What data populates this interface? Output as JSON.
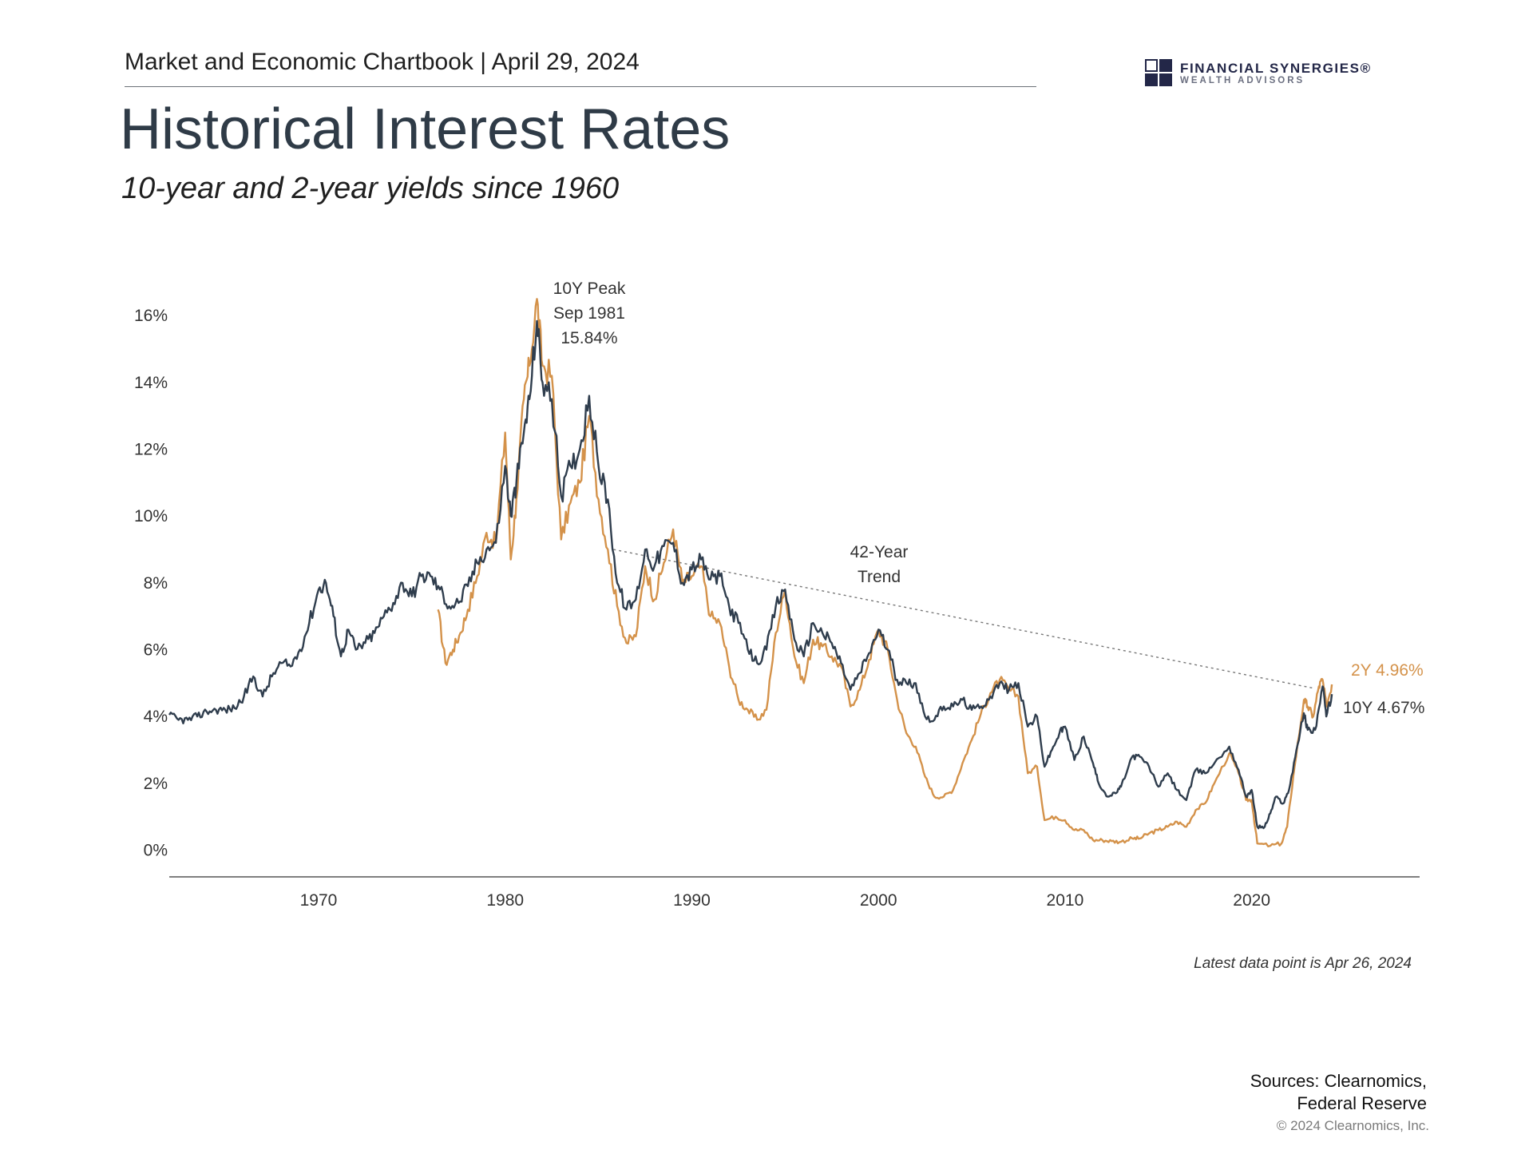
{
  "header": {
    "chartbook": "Market and Economic Chartbook | April 29, 2024"
  },
  "logo": {
    "name": "FINANCIAL SYNERGIES®",
    "sub": "WEALTH ADVISORS"
  },
  "title": "Historical Interest Rates",
  "subtitle": "10-year and 2-year yields since 1960",
  "footer": {
    "latest": "Latest data point is Apr 26, 2024",
    "sources_line1": "Sources: Clearnomics,",
    "sources_line2": "Federal Reserve",
    "copyright": "© 2024 Clearnomics, Inc."
  },
  "colors": {
    "ten_year": "#2f3d4d",
    "two_year": "#d4924a",
    "trend": "#777777",
    "axis": "#555555"
  },
  "chart_data": {
    "type": "line",
    "xlim": [
      1962,
      2029
    ],
    "ylim": [
      -0.8,
      17.2
    ],
    "x_ticks": [
      1970,
      1980,
      1990,
      2000,
      2010,
      2020
    ],
    "y_ticks": [
      0,
      2,
      4,
      6,
      8,
      10,
      12,
      14,
      16
    ],
    "y_tick_labels": [
      "0%",
      "2%",
      "4%",
      "6%",
      "8%",
      "10%",
      "12%",
      "14%",
      "16%"
    ],
    "grid": false,
    "series": [
      {
        "name": "10Y",
        "end_label": "10Y 4.67%",
        "points": [
          [
            1962.0,
            4.05
          ],
          [
            1962.5,
            3.9
          ],
          [
            1963.0,
            3.9
          ],
          [
            1963.5,
            4.0
          ],
          [
            1964.0,
            4.15
          ],
          [
            1964.5,
            4.2
          ],
          [
            1965.0,
            4.2
          ],
          [
            1965.5,
            4.25
          ],
          [
            1966.0,
            4.6
          ],
          [
            1966.5,
            5.2
          ],
          [
            1967.0,
            4.6
          ],
          [
            1967.5,
            5.2
          ],
          [
            1968.0,
            5.6
          ],
          [
            1968.5,
            5.5
          ],
          [
            1969.0,
            6.0
          ],
          [
            1969.5,
            6.8
          ],
          [
            1970.0,
            7.8
          ],
          [
            1970.4,
            8.0
          ],
          [
            1970.8,
            7.0
          ],
          [
            1971.2,
            5.8
          ],
          [
            1971.6,
            6.6
          ],
          [
            1972.0,
            6.0
          ],
          [
            1972.5,
            6.2
          ],
          [
            1973.0,
            6.5
          ],
          [
            1973.5,
            7.0
          ],
          [
            1974.0,
            7.4
          ],
          [
            1974.5,
            8.0
          ],
          [
            1975.0,
            7.6
          ],
          [
            1975.5,
            8.2
          ],
          [
            1976.0,
            8.2
          ],
          [
            1976.5,
            7.8
          ],
          [
            1977.0,
            7.3
          ],
          [
            1977.5,
            7.4
          ],
          [
            1978.0,
            7.9
          ],
          [
            1978.5,
            8.6
          ],
          [
            1979.0,
            9.0
          ],
          [
            1979.5,
            9.2
          ],
          [
            1980.0,
            11.5
          ],
          [
            1980.3,
            10.0
          ],
          [
            1980.6,
            11.0
          ],
          [
            1981.0,
            12.5
          ],
          [
            1981.3,
            13.5
          ],
          [
            1981.7,
            15.84
          ],
          [
            1982.0,
            14.0
          ],
          [
            1982.5,
            13.5
          ],
          [
            1983.0,
            10.6
          ],
          [
            1983.5,
            11.5
          ],
          [
            1984.0,
            12.0
          ],
          [
            1984.5,
            13.6
          ],
          [
            1985.0,
            11.5
          ],
          [
            1985.5,
            10.5
          ],
          [
            1986.0,
            8.0
          ],
          [
            1986.5,
            7.2
          ],
          [
            1987.0,
            7.5
          ],
          [
            1987.5,
            9.0
          ],
          [
            1988.0,
            8.5
          ],
          [
            1988.5,
            9.1
          ],
          [
            1989.0,
            9.2
          ],
          [
            1989.5,
            8.0
          ],
          [
            1990.0,
            8.4
          ],
          [
            1990.5,
            8.7
          ],
          [
            1991.0,
            8.1
          ],
          [
            1991.5,
            8.2
          ],
          [
            1992.0,
            7.3
          ],
          [
            1992.5,
            6.8
          ],
          [
            1993.0,
            6.0
          ],
          [
            1993.5,
            5.6
          ],
          [
            1994.0,
            6.0
          ],
          [
            1994.5,
            7.3
          ],
          [
            1995.0,
            7.8
          ],
          [
            1995.5,
            6.3
          ],
          [
            1996.0,
            5.8
          ],
          [
            1996.5,
            6.8
          ],
          [
            1997.0,
            6.5
          ],
          [
            1997.5,
            6.2
          ],
          [
            1998.0,
            5.6
          ],
          [
            1998.5,
            4.8
          ],
          [
            1999.0,
            5.3
          ],
          [
            1999.5,
            5.9
          ],
          [
            2000.0,
            6.6
          ],
          [
            2000.5,
            6.0
          ],
          [
            2001.0,
            5.1
          ],
          [
            2001.5,
            5.0
          ],
          [
            2002.0,
            5.0
          ],
          [
            2002.5,
            4.0
          ],
          [
            2003.0,
            3.9
          ],
          [
            2003.5,
            4.3
          ],
          [
            2004.0,
            4.3
          ],
          [
            2004.5,
            4.5
          ],
          [
            2005.0,
            4.2
          ],
          [
            2005.5,
            4.3
          ],
          [
            2006.0,
            4.6
          ],
          [
            2006.5,
            5.0
          ],
          [
            2007.0,
            4.8
          ],
          [
            2007.5,
            5.0
          ],
          [
            2008.0,
            3.7
          ],
          [
            2008.5,
            4.0
          ],
          [
            2008.9,
            2.5
          ],
          [
            2009.3,
            3.0
          ],
          [
            2009.7,
            3.5
          ],
          [
            2010.0,
            3.7
          ],
          [
            2010.5,
            2.7
          ],
          [
            2011.0,
            3.4
          ],
          [
            2011.5,
            2.6
          ],
          [
            2011.8,
            2.0
          ],
          [
            2012.3,
            1.6
          ],
          [
            2012.7,
            1.7
          ],
          [
            2013.0,
            1.9
          ],
          [
            2013.6,
            2.8
          ],
          [
            2014.0,
            2.8
          ],
          [
            2014.5,
            2.5
          ],
          [
            2015.0,
            1.9
          ],
          [
            2015.5,
            2.3
          ],
          [
            2016.0,
            1.8
          ],
          [
            2016.5,
            1.5
          ],
          [
            2017.0,
            2.4
          ],
          [
            2017.5,
            2.3
          ],
          [
            2018.0,
            2.6
          ],
          [
            2018.8,
            3.1
          ],
          [
            2019.3,
            2.4
          ],
          [
            2019.7,
            1.6
          ],
          [
            2020.0,
            1.8
          ],
          [
            2020.3,
            0.7
          ],
          [
            2020.7,
            0.7
          ],
          [
            2021.0,
            1.1
          ],
          [
            2021.3,
            1.6
          ],
          [
            2021.7,
            1.4
          ],
          [
            2022.0,
            1.8
          ],
          [
            2022.4,
            3.0
          ],
          [
            2022.8,
            4.1
          ],
          [
            2023.0,
            3.6
          ],
          [
            2023.4,
            3.6
          ],
          [
            2023.8,
            4.9
          ],
          [
            2024.0,
            4.0
          ],
          [
            2024.3,
            4.67
          ]
        ]
      },
      {
        "name": "2Y",
        "end_label": "2Y 4.96%",
        "points": [
          [
            1976.4,
            7.2
          ],
          [
            1976.8,
            5.6
          ],
          [
            1977.2,
            6.0
          ],
          [
            1977.6,
            6.5
          ],
          [
            1978.0,
            7.2
          ],
          [
            1978.5,
            8.2
          ],
          [
            1979.0,
            9.5
          ],
          [
            1979.5,
            9.2
          ],
          [
            1980.0,
            12.5
          ],
          [
            1980.3,
            8.7
          ],
          [
            1980.6,
            10.5
          ],
          [
            1981.0,
            13.5
          ],
          [
            1981.3,
            14.5
          ],
          [
            1981.7,
            16.5
          ],
          [
            1982.0,
            14.5
          ],
          [
            1982.5,
            14.2
          ],
          [
            1983.0,
            9.3
          ],
          [
            1983.5,
            10.4
          ],
          [
            1984.0,
            11.0
          ],
          [
            1984.5,
            13.0
          ],
          [
            1985.0,
            10.5
          ],
          [
            1985.5,
            9.0
          ],
          [
            1986.0,
            7.3
          ],
          [
            1986.5,
            6.2
          ],
          [
            1987.0,
            6.4
          ],
          [
            1987.5,
            8.5
          ],
          [
            1988.0,
            7.5
          ],
          [
            1988.5,
            8.6
          ],
          [
            1989.0,
            9.6
          ],
          [
            1989.5,
            8.0
          ],
          [
            1990.0,
            8.2
          ],
          [
            1990.5,
            8.5
          ],
          [
            1991.0,
            7.0
          ],
          [
            1991.5,
            6.8
          ],
          [
            1992.0,
            5.5
          ],
          [
            1992.5,
            4.5
          ],
          [
            1993.0,
            4.2
          ],
          [
            1993.5,
            3.9
          ],
          [
            1994.0,
            4.2
          ],
          [
            1994.5,
            6.5
          ],
          [
            1995.0,
            7.8
          ],
          [
            1995.5,
            5.8
          ],
          [
            1996.0,
            5.0
          ],
          [
            1996.5,
            6.3
          ],
          [
            1997.0,
            6.1
          ],
          [
            1997.5,
            5.8
          ],
          [
            1998.0,
            5.5
          ],
          [
            1998.5,
            4.3
          ],
          [
            1999.0,
            4.8
          ],
          [
            1999.5,
            5.7
          ],
          [
            2000.0,
            6.6
          ],
          [
            2000.5,
            6.0
          ],
          [
            2001.0,
            4.5
          ],
          [
            2001.5,
            3.5
          ],
          [
            2002.0,
            3.1
          ],
          [
            2002.5,
            2.2
          ],
          [
            2003.0,
            1.6
          ],
          [
            2003.5,
            1.6
          ],
          [
            2004.0,
            1.8
          ],
          [
            2004.5,
            2.6
          ],
          [
            2005.0,
            3.3
          ],
          [
            2005.5,
            4.1
          ],
          [
            2006.0,
            4.7
          ],
          [
            2006.5,
            5.1
          ],
          [
            2007.0,
            4.8
          ],
          [
            2007.5,
            4.6
          ],
          [
            2008.0,
            2.3
          ],
          [
            2008.5,
            2.5
          ],
          [
            2008.9,
            0.9
          ],
          [
            2009.5,
            1.0
          ],
          [
            2010.0,
            0.9
          ],
          [
            2010.5,
            0.6
          ],
          [
            2011.0,
            0.6
          ],
          [
            2011.5,
            0.3
          ],
          [
            2012.0,
            0.3
          ],
          [
            2012.5,
            0.27
          ],
          [
            2013.0,
            0.25
          ],
          [
            2013.6,
            0.35
          ],
          [
            2014.0,
            0.35
          ],
          [
            2014.5,
            0.5
          ],
          [
            2015.0,
            0.6
          ],
          [
            2015.5,
            0.7
          ],
          [
            2016.0,
            0.85
          ],
          [
            2016.5,
            0.7
          ],
          [
            2017.0,
            1.2
          ],
          [
            2017.5,
            1.4
          ],
          [
            2018.0,
            2.0
          ],
          [
            2018.8,
            2.9
          ],
          [
            2019.3,
            2.3
          ],
          [
            2019.7,
            1.5
          ],
          [
            2020.0,
            1.5
          ],
          [
            2020.3,
            0.2
          ],
          [
            2021.0,
            0.13
          ],
          [
            2021.6,
            0.2
          ],
          [
            2021.9,
            0.7
          ],
          [
            2022.3,
            2.5
          ],
          [
            2022.8,
            4.5
          ],
          [
            2023.0,
            4.3
          ],
          [
            2023.3,
            4.0
          ],
          [
            2023.6,
            4.9
          ],
          [
            2023.8,
            5.1
          ],
          [
            2024.0,
            4.3
          ],
          [
            2024.3,
            4.96
          ]
        ]
      }
    ],
    "trend": {
      "label_line1": "42-Year",
      "label_line2": "Trend",
      "start": [
        1985.8,
        9.0
      ],
      "end": [
        2023.3,
        4.85
      ]
    },
    "annotations": {
      "peak_line1": "10Y Peak",
      "peak_line2": "Sep 1981",
      "peak_line3": "15.84%"
    }
  }
}
